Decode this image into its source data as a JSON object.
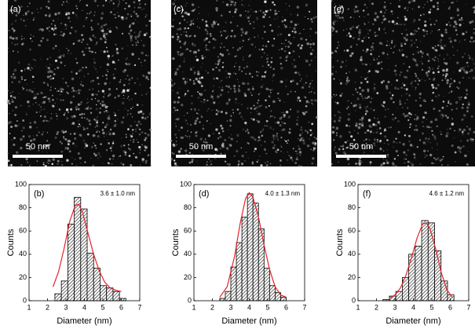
{
  "chart_data": [
    {
      "type": "histogram",
      "image_label": "(a)",
      "scale_bar": "50 nm",
      "label": "(b)",
      "annotation": "3.6 ± 1.0 nm",
      "xlabel": "Diameter (nm)",
      "ylabel": "Counts",
      "bins": [
        2.4,
        2.75,
        3.1,
        3.45,
        3.8,
        4.15,
        4.5,
        4.85,
        5.2,
        5.55,
        5.9,
        6.25
      ],
      "values": [
        6,
        17,
        66,
        89,
        79,
        41,
        28,
        13,
        11,
        8,
        2
      ],
      "color": "#000000",
      "fit": {
        "color": "#e8212b",
        "x": [
          2.3,
          2.6,
          2.9,
          3.2,
          3.5,
          3.7,
          3.9,
          4.2,
          4.5,
          4.8,
          5.1,
          5.4,
          5.7,
          6.0
        ],
        "y": [
          12,
          25,
          45,
          68,
          82,
          83,
          76,
          58,
          40,
          26,
          16,
          11,
          9,
          8
        ]
      },
      "xlim": [
        1,
        7
      ],
      "ylim": [
        0,
        100
      ],
      "xticks": [
        1,
        2,
        3,
        4,
        5,
        6,
        7
      ],
      "yticks": [
        0,
        20,
        40,
        60,
        80,
        100
      ]
    },
    {
      "type": "histogram",
      "image_label": "(c)",
      "scale_bar": "50 nm",
      "label": "(d)",
      "annotation": "4.0 ± 1.3 nm",
      "xlabel": "Diameter (nm)",
      "ylabel": "Counts",
      "bins": [
        2.4,
        2.7,
        3.0,
        3.3,
        3.6,
        3.9,
        4.2,
        4.5,
        4.8,
        5.1,
        5.4,
        5.7,
        6.0
      ],
      "values": [
        2,
        8,
        29,
        50,
        72,
        92,
        84,
        62,
        28,
        13,
        7,
        3
      ],
      "color": "#000000",
      "fit": {
        "color": "#e8212b",
        "x": [
          2.4,
          2.8,
          3.2,
          3.5,
          3.8,
          4.0,
          4.2,
          4.5,
          4.8,
          5.1,
          5.4,
          5.7,
          6.0
        ],
        "y": [
          3,
          12,
          38,
          66,
          88,
          93,
          89,
          72,
          48,
          27,
          12,
          5,
          3
        ]
      },
      "xlim": [
        1,
        7
      ],
      "ylim": [
        0,
        100
      ],
      "xticks": [
        1,
        2,
        3,
        4,
        5,
        6,
        7
      ],
      "yticks": [
        0,
        20,
        40,
        60,
        80,
        100
      ]
    },
    {
      "type": "histogram",
      "image_label": "(e)",
      "scale_bar": "50 nm",
      "label": "(f)",
      "annotation": "4.6 ± 1.2 nm",
      "xlabel": "Diameter (nm)",
      "ylabel": "Counts",
      "bins": [
        2.35,
        2.7,
        3.05,
        3.4,
        3.75,
        4.1,
        4.45,
        4.8,
        5.15,
        5.5,
        5.85,
        6.2
      ],
      "values": [
        1,
        4,
        8,
        20,
        40,
        47,
        69,
        67,
        43,
        17,
        5
      ],
      "color": "#000000",
      "fit": {
        "color": "#e8212b",
        "x": [
          2.7,
          3.0,
          3.3,
          3.6,
          3.9,
          4.2,
          4.5,
          4.7,
          4.9,
          5.2,
          5.5,
          5.8,
          6.1
        ],
        "y": [
          2,
          5,
          11,
          22,
          37,
          54,
          66,
          67,
          62,
          45,
          25,
          10,
          3
        ]
      },
      "xlim": [
        1,
        7
      ],
      "ylim": [
        0,
        100
      ],
      "xticks": [
        1,
        2,
        3,
        4,
        5,
        6,
        7
      ],
      "yticks": [
        0,
        20,
        40,
        60,
        80,
        100
      ]
    }
  ]
}
